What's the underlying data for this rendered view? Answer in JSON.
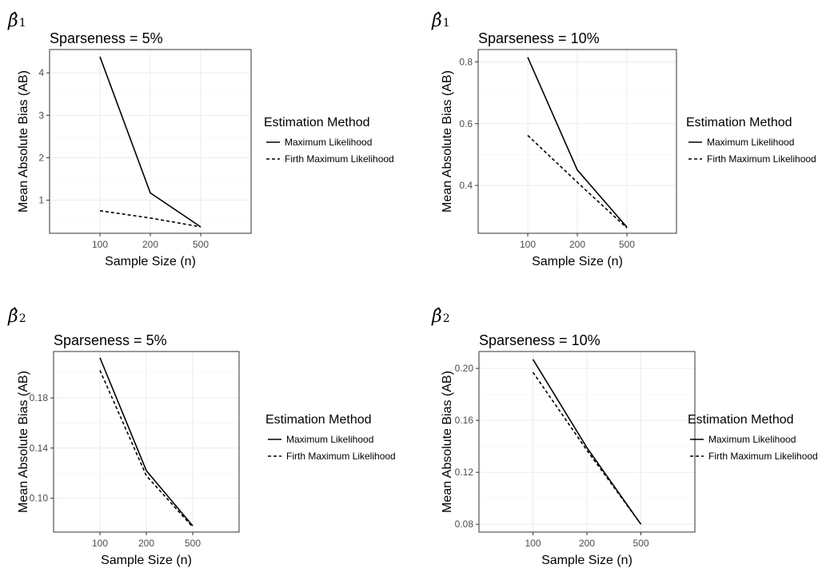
{
  "panels": [
    {
      "beta": {
        "symbol": "β̂",
        "subscript": "1"
      },
      "legend": {
        "title": "Estimation Method"
      },
      "chart_data": {
        "type": "line",
        "title": "Sparseness = 5%",
        "xlabel": "Sample Size (n)",
        "ylabel": "Mean Absolute Bias (AB)",
        "categories": [
          "100",
          "200",
          "500"
        ],
        "ylim": [
          0.22,
          4.55
        ],
        "yticks": [
          1,
          2,
          3,
          4
        ],
        "ytick_labels": [
          "1",
          "2",
          "3",
          "4"
        ],
        "grid": true,
        "legend_position": "right",
        "series": [
          {
            "name": "Maximum Likelihood",
            "values": [
              4.38,
              1.17,
              0.37
            ],
            "linestyle": "solid"
          },
          {
            "name": "Firth Maximum Likelihood",
            "values": [
              0.75,
              0.58,
              0.37
            ],
            "linestyle": "dashed"
          }
        ]
      }
    },
    {
      "beta": {
        "symbol": "β̂",
        "subscript": "1"
      },
      "legend": {
        "title": "Estimation Method"
      },
      "chart_data": {
        "type": "line",
        "title": "Sparseness = 10%",
        "xlabel": "Sample Size (n)",
        "ylabel": "Mean Absolute Bias (AB)",
        "categories": [
          "100",
          "200",
          "500"
        ],
        "ylim": [
          0.245,
          0.84
        ],
        "yticks": [
          0.4,
          0.6,
          0.8
        ],
        "ytick_labels": [
          "0.4",
          "0.6",
          "0.8"
        ],
        "grid": true,
        "legend_position": "right",
        "series": [
          {
            "name": "Maximum Likelihood",
            "values": [
              0.815,
              0.45,
              0.265
            ],
            "linestyle": "solid"
          },
          {
            "name": "Firth Maximum Likelihood",
            "values": [
              0.562,
              0.41,
              0.262
            ],
            "linestyle": "dashed"
          }
        ]
      }
    },
    {
      "beta": {
        "symbol": "β̂",
        "subscript": "2"
      },
      "legend": {
        "title": "Estimation Method"
      },
      "chart_data": {
        "type": "line",
        "title": "Sparseness = 5%",
        "xlabel": "Sample Size (n)",
        "ylabel": "Mean Absolute Bias (AB)",
        "categories": [
          "100",
          "200",
          "500"
        ],
        "ylim": [
          0.073,
          0.217
        ],
        "yticks": [
          0.1,
          0.14,
          0.18
        ],
        "ytick_labels": [
          "0.10",
          "0.14",
          "0.18"
        ],
        "grid": true,
        "legend_position": "right",
        "series": [
          {
            "name": "Maximum Likelihood",
            "values": [
              0.212,
              0.122,
              0.078
            ],
            "linestyle": "solid"
          },
          {
            "name": "Firth Maximum Likelihood",
            "values": [
              0.202,
              0.118,
              0.077
            ],
            "linestyle": "dashed"
          }
        ]
      }
    },
    {
      "beta": {
        "symbol": "β̂",
        "subscript": "2"
      },
      "legend": {
        "title": "Estimation Method"
      },
      "chart_data": {
        "type": "line",
        "title": "Sparseness = 10%",
        "xlabel": "Sample Size (n)",
        "ylabel": "Mean Absolute Bias (AB)",
        "categories": [
          "100",
          "200",
          "500"
        ],
        "ylim": [
          0.074,
          0.213
        ],
        "yticks": [
          0.08,
          0.12,
          0.16,
          0.2
        ],
        "ytick_labels": [
          "0.08",
          "0.12",
          "0.16",
          "0.20"
        ],
        "grid": true,
        "legend_position": "right",
        "series": [
          {
            "name": "Maximum Likelihood",
            "values": [
              0.207,
              0.139,
              0.08
            ],
            "linestyle": "solid"
          },
          {
            "name": "Firth Maximum Likelihood",
            "values": [
              0.197,
              0.137,
              0.08
            ],
            "linestyle": "dashed"
          }
        ]
      }
    }
  ]
}
